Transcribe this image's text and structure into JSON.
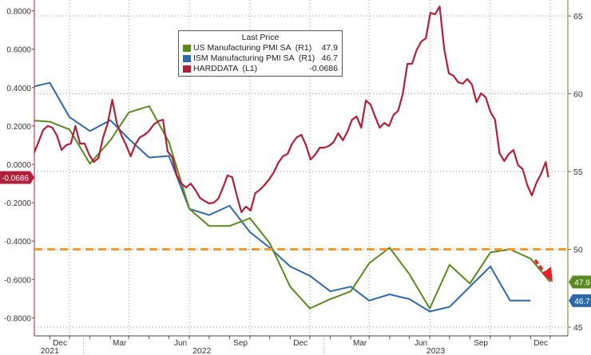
{
  "chart_data": {
    "type": "line",
    "legend": {
      "title": "Last Price",
      "placement": "top-center",
      "entries": [
        {
          "name": "US Manufacturing PMI SA  (R1)",
          "last": "47.9",
          "color": "#5a8a1e"
        },
        {
          "name": "ISM Manufacturing PMI SA  (R1)",
          "last": "46.7",
          "color": "#2f6aa8"
        },
        {
          "name": "HARDDATA  (L1)",
          "last": "-0.0686",
          "color": "#b0203a"
        }
      ]
    },
    "x_axis": {
      "range": [
        "2021-10-05",
        "2023-12-31"
      ],
      "month_ticks": [
        {
          "date": "2021-12-01",
          "label": "Dec"
        },
        {
          "date": "2022-03-01",
          "label": "Mar"
        },
        {
          "date": "2022-06-01",
          "label": "Jun"
        },
        {
          "date": "2022-09-01",
          "label": "Sep"
        },
        {
          "date": "2022-12-01",
          "label": "Dec"
        },
        {
          "date": "2023-03-01",
          "label": "Mar"
        },
        {
          "date": "2023-06-01",
          "label": "Jun"
        },
        {
          "date": "2023-09-01",
          "label": "Sep"
        },
        {
          "date": "2023-12-01",
          "label": "Dec"
        }
      ],
      "year_labels": [
        {
          "label": "2021",
          "date": "2021-11-01"
        },
        {
          "label": "2022",
          "date": "2022-06-20"
        },
        {
          "label": "2023",
          "date": "2023-06-10"
        }
      ],
      "year_breaks": [
        "2022-01-01",
        "2023-01-01"
      ]
    },
    "left_axis": {
      "range": [
        -0.86,
        0.855
      ],
      "ticks": [
        "0.8000",
        "0.6000",
        "0.4000",
        "0.2000",
        "0.0000",
        "-0.2000",
        "-0.4000",
        "-0.6000",
        "-0.8000"
      ],
      "tick_values": [
        0.8,
        0.6,
        0.4,
        0.2,
        0,
        -0.2,
        -0.4,
        -0.6,
        -0.8
      ],
      "last_value_label": "-0.0686"
    },
    "right_axis": {
      "range": [
        44.4,
        66.0
      ],
      "ticks": [
        "65",
        "60",
        "55",
        "50",
        "45"
      ],
      "tick_values": [
        65,
        60,
        55,
        50,
        45
      ],
      "grid": true
    },
    "reference_line": {
      "axis": "right",
      "value": 50,
      "color": "#f39a2b",
      "style": "dashed"
    },
    "annotation_arrow": {
      "color": "#e8202a",
      "direction": "down-right"
    },
    "series": [
      {
        "name": "US Manufacturing PMI SA",
        "axis": "right",
        "color": "#5a8a1e",
        "last_label": "47.9",
        "points": [
          [
            "2021-10-01",
            58.3
          ],
          [
            "2021-11-01",
            58.2
          ],
          [
            "2021-12-01",
            57.7
          ],
          [
            "2022-01-01",
            55.5
          ],
          [
            "2022-02-01",
            57.0
          ],
          [
            "2022-03-01",
            58.8
          ],
          [
            "2022-04-01",
            59.2
          ],
          [
            "2022-05-01",
            56.9
          ],
          [
            "2022-06-01",
            52.6
          ],
          [
            "2022-07-01",
            51.5
          ],
          [
            "2022-08-01",
            51.5
          ],
          [
            "2022-09-01",
            52.0
          ],
          [
            "2022-10-01",
            50.4
          ],
          [
            "2022-11-01",
            47.6
          ],
          [
            "2022-12-01",
            46.2
          ],
          [
            "2023-01-01",
            46.8
          ],
          [
            "2023-02-01",
            47.3
          ],
          [
            "2023-03-01",
            49.1
          ],
          [
            "2023-04-01",
            50.1
          ],
          [
            "2023-05-01",
            48.4
          ],
          [
            "2023-06-01",
            46.2
          ],
          [
            "2023-07-01",
            49.0
          ],
          [
            "2023-08-01",
            47.8
          ],
          [
            "2023-09-01",
            49.8
          ],
          [
            "2023-10-01",
            50.0
          ],
          [
            "2023-11-01",
            49.4
          ],
          [
            "2023-12-01",
            47.9
          ]
        ]
      },
      {
        "name": "ISM Manufacturing PMI SA",
        "axis": "right",
        "color": "#2f6aa8",
        "last_label": "46.7",
        "points": [
          [
            "2021-10-01",
            60.4
          ],
          [
            "2021-11-01",
            60.7
          ],
          [
            "2021-12-01",
            58.5
          ],
          [
            "2022-01-01",
            57.6
          ],
          [
            "2022-02-01",
            58.3
          ],
          [
            "2022-03-01",
            57.1
          ],
          [
            "2022-04-01",
            55.9
          ],
          [
            "2022-05-01",
            56.0
          ],
          [
            "2022-06-01",
            52.6
          ],
          [
            "2022-07-01",
            52.2
          ],
          [
            "2022-08-01",
            52.8
          ],
          [
            "2022-09-01",
            51.1
          ],
          [
            "2022-10-01",
            50.1
          ],
          [
            "2022-11-01",
            48.9
          ],
          [
            "2022-12-01",
            48.3
          ],
          [
            "2023-01-01",
            47.3
          ],
          [
            "2023-02-01",
            47.6
          ],
          [
            "2023-03-01",
            46.7
          ],
          [
            "2023-04-01",
            47.1
          ],
          [
            "2023-05-01",
            46.8
          ],
          [
            "2023-06-01",
            46.0
          ],
          [
            "2023-07-01",
            46.3
          ],
          [
            "2023-08-01",
            47.6
          ],
          [
            "2023-09-01",
            48.9
          ],
          [
            "2023-10-01",
            46.7
          ],
          [
            "2023-11-01",
            46.7
          ]
        ]
      },
      {
        "name": "HARDDATA",
        "axis": "left",
        "color": "#b0203a",
        "last_label": "-0.0686",
        "points": [
          [
            "2021-10-08",
            0.058
          ],
          [
            "2021-10-15",
            0.116
          ],
          [
            "2021-10-22",
            0.179
          ],
          [
            "2021-10-29",
            0.2
          ],
          [
            "2021-11-05",
            0.191
          ],
          [
            "2021-11-12",
            0.15
          ],
          [
            "2021-11-19",
            0.075
          ],
          [
            "2021-11-26",
            0.1
          ],
          [
            "2021-12-03",
            0.108
          ],
          [
            "2021-12-10",
            0.2
          ],
          [
            "2021-12-17",
            0.108
          ],
          [
            "2021-12-24",
            0.108
          ],
          [
            "2021-12-31",
            0.05
          ],
          [
            "2022-01-07",
            0.012
          ],
          [
            "2022-01-14",
            0.033
          ],
          [
            "2022-01-21",
            0.141
          ],
          [
            "2022-01-28",
            0.212
          ],
          [
            "2022-02-04",
            0.337
          ],
          [
            "2022-02-11",
            0.212
          ],
          [
            "2022-02-18",
            0.15
          ],
          [
            "2022-02-25",
            0.1
          ],
          [
            "2022-03-04",
            0.042
          ],
          [
            "2022-03-11",
            0.104
          ],
          [
            "2022-03-18",
            0.141
          ],
          [
            "2022-03-25",
            0.154
          ],
          [
            "2022-04-01",
            0.175
          ],
          [
            "2022-04-08",
            0.208
          ],
          [
            "2022-04-15",
            0.225
          ],
          [
            "2022-04-22",
            0.233
          ],
          [
            "2022-04-29",
            0.067
          ],
          [
            "2022-05-06",
            0.037
          ],
          [
            "2022-05-13",
            -0.058
          ],
          [
            "2022-05-20",
            -0.1
          ],
          [
            "2022-05-27",
            -0.121
          ],
          [
            "2022-06-03",
            -0.1
          ],
          [
            "2022-06-10",
            -0.133
          ],
          [
            "2022-06-17",
            -0.175
          ],
          [
            "2022-06-24",
            -0.191
          ],
          [
            "2022-07-01",
            -0.204
          ],
          [
            "2022-07-08",
            -0.2
          ],
          [
            "2022-07-15",
            -0.179
          ],
          [
            "2022-07-22",
            -0.121
          ],
          [
            "2022-07-29",
            -0.058
          ],
          [
            "2022-08-05",
            -0.067
          ],
          [
            "2022-08-12",
            -0.162
          ],
          [
            "2022-08-19",
            -0.249
          ],
          [
            "2022-08-26",
            -0.22
          ],
          [
            "2022-09-02",
            -0.241
          ],
          [
            "2022-09-09",
            -0.15
          ],
          [
            "2022-09-16",
            -0.133
          ],
          [
            "2022-09-23",
            -0.108
          ],
          [
            "2022-09-30",
            -0.079
          ],
          [
            "2022-10-07",
            -0.042
          ],
          [
            "2022-10-14",
            0.008
          ],
          [
            "2022-10-21",
            0.042
          ],
          [
            "2022-10-28",
            0.054
          ],
          [
            "2022-11-04",
            0.108
          ],
          [
            "2022-11-11",
            0.141
          ],
          [
            "2022-11-18",
            0.154
          ],
          [
            "2022-11-25",
            0.1
          ],
          [
            "2022-12-02",
            0.025
          ],
          [
            "2022-12-09",
            0.05
          ],
          [
            "2022-12-16",
            0.087
          ],
          [
            "2022-12-23",
            0.087
          ],
          [
            "2022-12-30",
            0.096
          ],
          [
            "2023-01-06",
            0.116
          ],
          [
            "2023-01-13",
            0.162
          ],
          [
            "2023-01-20",
            0.125
          ],
          [
            "2023-01-27",
            0.17
          ],
          [
            "2023-02-03",
            0.233
          ],
          [
            "2023-02-10",
            0.249
          ],
          [
            "2023-02-17",
            0.191
          ],
          [
            "2023-02-24",
            0.333
          ],
          [
            "2023-03-03",
            0.312
          ],
          [
            "2023-03-10",
            0.249
          ],
          [
            "2023-03-17",
            0.191
          ],
          [
            "2023-03-24",
            0.216
          ],
          [
            "2023-03-31",
            0.2
          ],
          [
            "2023-04-07",
            0.258
          ],
          [
            "2023-04-14",
            0.279
          ],
          [
            "2023-04-21",
            0.366
          ],
          [
            "2023-04-28",
            0.524
          ],
          [
            "2023-05-05",
            0.524
          ],
          [
            "2023-05-12",
            0.595
          ],
          [
            "2023-05-19",
            0.64
          ],
          [
            "2023-05-26",
            0.657
          ],
          [
            "2023-06-02",
            0.79
          ],
          [
            "2023-06-09",
            0.782
          ],
          [
            "2023-06-16",
            0.823
          ],
          [
            "2023-06-23",
            0.599
          ],
          [
            "2023-06-30",
            0.474
          ],
          [
            "2023-07-07",
            0.462
          ],
          [
            "2023-07-14",
            0.428
          ],
          [
            "2023-07-21",
            0.42
          ],
          [
            "2023-07-28",
            0.445
          ],
          [
            "2023-08-04",
            0.416
          ],
          [
            "2023-08-11",
            0.324
          ],
          [
            "2023-08-18",
            0.37
          ],
          [
            "2023-08-25",
            0.349
          ],
          [
            "2023-09-01",
            0.274
          ],
          [
            "2023-09-08",
            0.233
          ],
          [
            "2023-09-15",
            0.058
          ],
          [
            "2023-09-22",
            0.017
          ],
          [
            "2023-09-29",
            0.054
          ],
          [
            "2023-10-06",
            0.075
          ],
          [
            "2023-10-13",
            -0.004
          ],
          [
            "2023-10-20",
            -0.025
          ],
          [
            "2023-10-27",
            -0.108
          ],
          [
            "2023-11-03",
            -0.162
          ],
          [
            "2023-11-10",
            -0.096
          ],
          [
            "2023-11-17",
            -0.05
          ],
          [
            "2023-11-24",
            0.012
          ],
          [
            "2023-11-28",
            -0.0686
          ]
        ]
      }
    ]
  }
}
